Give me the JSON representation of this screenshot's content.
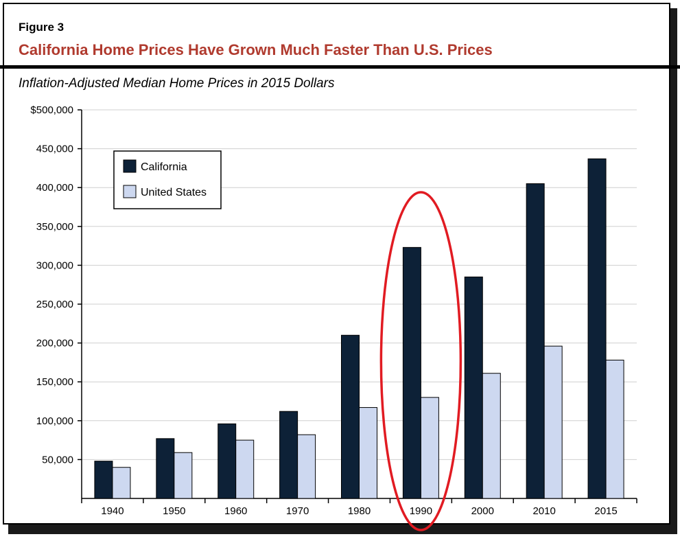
{
  "figure_label": "Figure 3",
  "title": "California Home Prices Have Grown Much Faster Than U.S. Prices",
  "subtitle": "Inflation-Adjusted Median Home Prices in 2015 Dollars",
  "colors": {
    "california": "#0d2137",
    "united_states": "#cdd8f0",
    "title": "#b03a2e",
    "highlight": "#e11b22"
  },
  "chart_data": {
    "type": "bar",
    "title": "",
    "xlabel": "",
    "ylabel": "",
    "categories": [
      "1940",
      "1950",
      "1960",
      "1970",
      "1980",
      "1990",
      "2000",
      "2010",
      "2015"
    ],
    "series": [
      {
        "name": "California",
        "values": [
          48000,
          77000,
          96000,
          112000,
          210000,
          323000,
          285000,
          405000,
          437000
        ]
      },
      {
        "name": "United States",
        "values": [
          40000,
          59000,
          75000,
          82000,
          117000,
          130000,
          161000,
          196000,
          178000
        ]
      }
    ],
    "ylim": [
      0,
      500000
    ],
    "y_ticks": [
      {
        "value": 50000,
        "label": "50,000"
      },
      {
        "value": 100000,
        "label": "100,000"
      },
      {
        "value": 150000,
        "label": "150,000"
      },
      {
        "value": 200000,
        "label": "200,000"
      },
      {
        "value": 250000,
        "label": "250,000"
      },
      {
        "value": 300000,
        "label": "300,000"
      },
      {
        "value": 350000,
        "label": "350,000"
      },
      {
        "value": 400000,
        "label": "400,000"
      },
      {
        "value": 450000,
        "label": "450,000"
      },
      {
        "value": 500000,
        "label": "$500,000"
      }
    ],
    "grid": true,
    "legend_position": "top-left",
    "highlighted_category": "1990"
  }
}
